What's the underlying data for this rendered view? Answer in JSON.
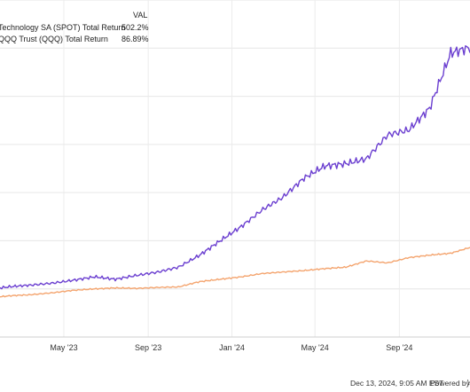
{
  "chart_data": {
    "type": "line",
    "title": "",
    "xlabel": "",
    "ylabel": "",
    "legend": {
      "header": "VAL",
      "placement": "top-left",
      "entries": [
        {
          "name": "Technology SA (SPOT) Total Return",
          "value": "502.2%",
          "color": "#6b3fd0"
        },
        {
          "name": "QQQ Trust (QQQ) Total Return",
          "value": "86.89%",
          "color": "#f4a46e"
        }
      ]
    },
    "x_tick_labels": [
      "May '23",
      "Sep '23",
      "Jan '24",
      "May '24",
      "Sep '24"
    ],
    "x": [
      "2023-01",
      "2023-02",
      "2023-03",
      "2023-04",
      "2023-05",
      "2023-06",
      "2023-07",
      "2023-08",
      "2023-09",
      "2023-10",
      "2023-11",
      "2023-12",
      "2024-01",
      "2024-02",
      "2024-03",
      "2024-04",
      "2024-05",
      "2024-06",
      "2024-07",
      "2024-08",
      "2024-09",
      "2024-10",
      "2024-11",
      "2024-12"
    ],
    "ylim": [
      -100,
      600
    ],
    "grid": true,
    "series": [
      {
        "name": "Technology SA (SPOT) Total Return",
        "color": "#6b3fd0",
        "values": [
          0,
          5,
          8,
          12,
          18,
          25,
          20,
          28,
          35,
          45,
          70,
          100,
          130,
          165,
          190,
          230,
          255,
          260,
          270,
          320,
          330,
          375,
          490,
          502.2
        ]
      },
      {
        "name": "QQQ Trust (QQQ) Total Return",
        "color": "#f4a46e",
        "values": [
          -18,
          -14,
          -12,
          -8,
          -3,
          0,
          2,
          1,
          3,
          4,
          15,
          20,
          25,
          32,
          35,
          38,
          42,
          45,
          58,
          54,
          65,
          70,
          74,
          86.89
        ]
      }
    ]
  },
  "footer": {
    "timestamp": "Dec 13, 2024, 9:05 AM EST",
    "powered_by": "Powered by"
  }
}
